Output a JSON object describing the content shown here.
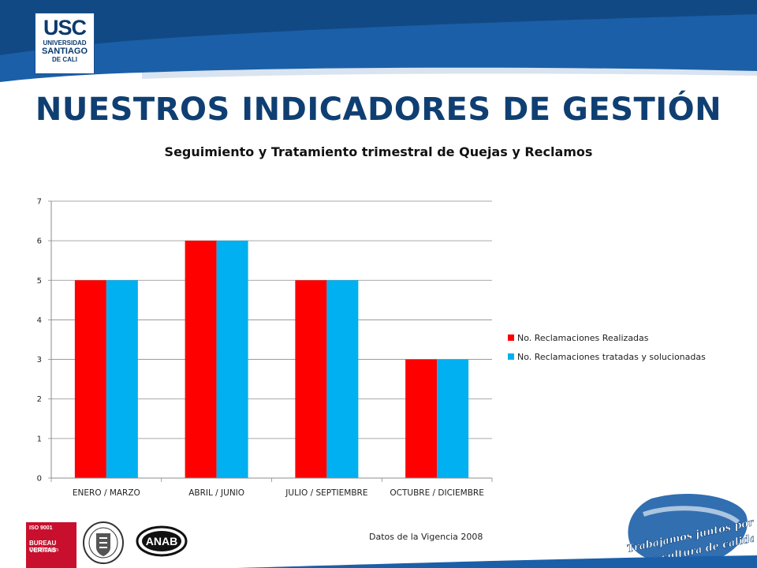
{
  "header": {
    "logo_line1": "USC",
    "logo_line2": "UNIVERSIDAD",
    "logo_line3": "SANTIAGO",
    "logo_line4": "DE CALI"
  },
  "page_title": "NUESTROS INDICADORES DE GESTIÓN",
  "chart_data": {
    "type": "bar",
    "title": "Seguimiento y Tratamiento trimestral de Quejas y Reclamos",
    "categories": [
      "ENERO / MARZO",
      "ABRIL / JUNIO",
      "JULIO / SEPTIEMBRE",
      "OCTUBRE / DICIEMBRE"
    ],
    "series": [
      {
        "name": "No. Reclamaciones Realizadas",
        "values": [
          5,
          6,
          5,
          3
        ],
        "color": "#ff0000"
      },
      {
        "name": "No. Reclamaciones tratadas y solucionadas",
        "values": [
          5,
          6,
          5,
          3
        ],
        "color": "#00b0f0"
      }
    ],
    "ylim": [
      0,
      7
    ],
    "yticks": [
      0,
      1,
      2,
      3,
      4,
      5,
      6,
      7
    ],
    "grid": true,
    "legend": "right"
  },
  "footer": {
    "note": "Datos de la Vigencia 2008",
    "iso_line1": "ISO 9001",
    "iso_line2": "BUREAU VERITAS",
    "iso_line3": "Certification",
    "anab": "ANAB",
    "slogan_line1": "Trabajamos juntos por",
    "slogan_line2": "una cultura de calidad"
  },
  "colors": {
    "header_blue": "#1b5fa8",
    "header_dark": "#0b3a6e",
    "title_blue": "#0f3f72",
    "bar_red": "#ff0000",
    "bar_cyan": "#00b0f0"
  }
}
